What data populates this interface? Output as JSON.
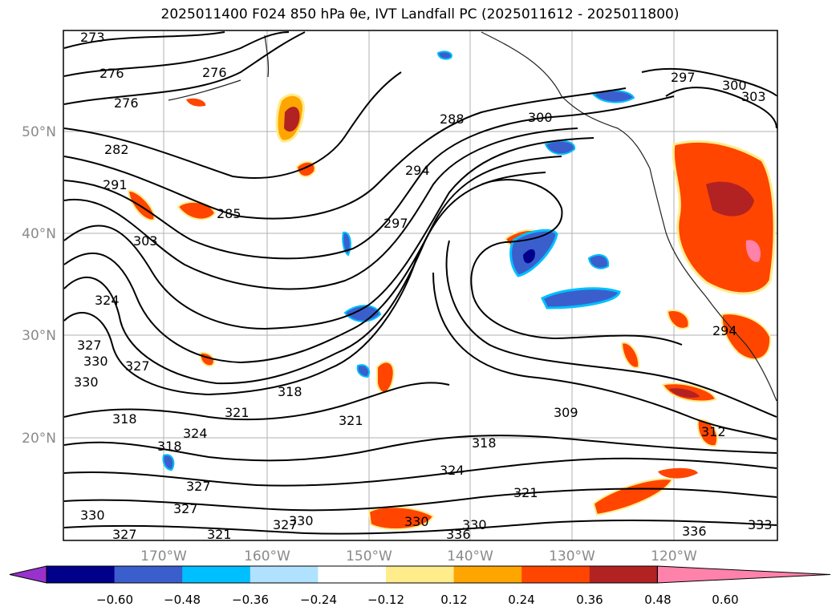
{
  "title": "2025011400 F024 850 hPa θe, IVT Landfall PC (2025011612 - 2025011800)",
  "map": {
    "lat_labels": [
      "50°N",
      "40°N",
      "30°N",
      "20°N"
    ],
    "lon_labels": [
      "170°W",
      "160°W",
      "150°W",
      "140°W",
      "130°W",
      "120°W"
    ],
    "contour_labels": [
      "273",
      "276",
      "276",
      "276",
      "282",
      "288",
      "291",
      "285",
      "294",
      "297",
      "300",
      "297",
      "300",
      "303",
      "303",
      "324",
      "327",
      "330",
      "330",
      "327",
      "318",
      "318",
      "321",
      "321",
      "318",
      "309",
      "312",
      "318",
      "324",
      "321",
      "324",
      "327",
      "327",
      "330",
      "327",
      "330",
      "330",
      "336",
      "330",
      "336",
      "333",
      "294",
      "327",
      "321"
    ]
  },
  "colorbar": {
    "ticks": [
      "−0.60",
      "−0.48",
      "−0.36",
      "−0.24",
      "−0.12",
      "0.12",
      "0.24",
      "0.36",
      "0.48",
      "0.60"
    ],
    "colors": [
      "#9932CC",
      "#00008B",
      "#3A5FCD",
      "#00BFFF",
      "#B0E2FF",
      "#FFFFFF",
      "#FFEC8B",
      "#FFA500",
      "#FF4500",
      "#B22222",
      "#FF82AB"
    ]
  }
}
